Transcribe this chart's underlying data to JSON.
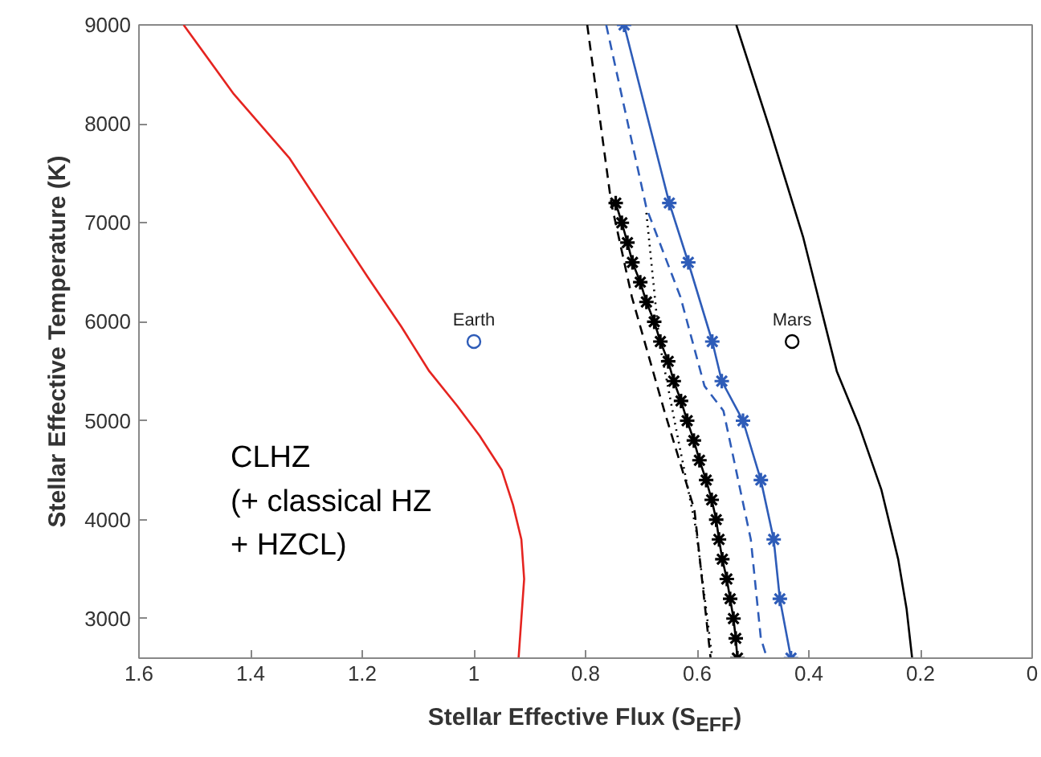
{
  "chart_data": {
    "type": "line",
    "xlabel": "Stellar Effective Flux (S$_{EFF}$)",
    "ylabel": "Stellar Effective Temperature (K)",
    "xlim": [
      1.6,
      0
    ],
    "ylim": [
      2600,
      9000
    ],
    "xticks": [
      1.6,
      1.4,
      1.2,
      1,
      0.8,
      0.6,
      0.4,
      0.2,
      0
    ],
    "yticks": [
      3000,
      4000,
      5000,
      6000,
      7000,
      8000,
      9000
    ],
    "grid": false,
    "annotations": [
      "CLHZ\n(+ classical HZ\n+ HZCL)"
    ],
    "series": [
      {
        "color": "#e52420",
        "line_style": "solid",
        "marker": "none",
        "x": [
          1.52,
          1.43,
          1.33,
          1.26,
          1.19,
          1.13,
          1.08,
          1.03,
          0.99,
          0.95,
          0.93,
          0.915,
          0.91,
          0.915,
          0.92
        ],
        "values": [
          9000,
          8300,
          7650,
          7050,
          6450,
          5950,
          5500,
          5150,
          4850,
          4500,
          4150,
          3800,
          3400,
          3000,
          2600
        ]
      },
      {
        "color": "#000000",
        "line_style": "solid",
        "marker": "none",
        "x": [
          0.53,
          0.47,
          0.41,
          0.35,
          0.31,
          0.27,
          0.24,
          0.225,
          0.215
        ],
        "values": [
          9000,
          7950,
          6850,
          5500,
          4950,
          4300,
          3600,
          3100,
          2600
        ]
      },
      {
        "color": "#000000",
        "line_style": "dashed",
        "marker": "none",
        "x": [
          0.797,
          0.754,
          0.717,
          0.659,
          0.605,
          0.576
        ],
        "values": [
          9000,
          7200,
          6250,
          5100,
          4100,
          2600
        ]
      },
      {
        "color": "#000000",
        "line_style": "dotted",
        "marker": "none",
        "x": [
          0.691,
          0.668,
          0.639,
          0.602,
          0.573
        ],
        "values": [
          7100,
          5800,
          4950,
          3900,
          2600
        ]
      },
      {
        "color": "#000000",
        "line_style": "solid",
        "marker": "cross",
        "x": [
          0.746,
          0.735,
          0.725,
          0.716,
          0.702,
          0.691,
          0.677,
          0.666,
          0.652,
          0.642,
          0.629,
          0.618,
          0.606,
          0.596,
          0.584,
          0.574,
          0.566,
          0.561,
          0.555,
          0.547,
          0.541,
          0.535,
          0.531,
          0.528
        ],
        "values": [
          7200,
          7000,
          6800,
          6600,
          6400,
          6200,
          6000,
          5800,
          5600,
          5400,
          5200,
          5000,
          4800,
          4600,
          4400,
          4200,
          4000,
          3800,
          3600,
          3400,
          3200,
          3000,
          2800,
          2600
        ]
      },
      {
        "color": "#2e5cb8",
        "line_style": "solid",
        "marker": "cross",
        "x": [
          0.731,
          0.65,
          0.616,
          0.573,
          0.556,
          0.518,
          0.486,
          0.463,
          0.452,
          0.432
        ],
        "values": [
          9000,
          7200,
          6600,
          5800,
          5400,
          5000,
          4400,
          3800,
          3200,
          2600
        ]
      },
      {
        "color": "#2e5cb8",
        "line_style": "dashed",
        "marker": "none",
        "x": [
          0.763,
          0.691,
          0.63,
          0.587,
          0.553,
          0.504,
          0.486,
          0.475
        ],
        "values": [
          9000,
          7150,
          6250,
          5350,
          5100,
          3800,
          2800,
          2600
        ]
      },
      {
        "type": "scatter",
        "name": "Earth",
        "color": "#2e5cb8",
        "marker": "circle",
        "x": [
          1
        ],
        "values": [
          5800
        ]
      },
      {
        "type": "scatter",
        "name": "Mars",
        "color": "#000000",
        "marker": "circle",
        "x": [
          0.43
        ],
        "values": [
          5800
        ]
      }
    ]
  }
}
